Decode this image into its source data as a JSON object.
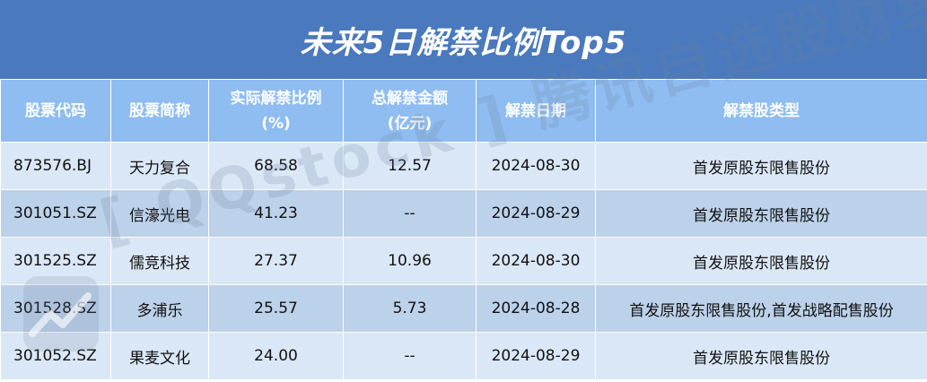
{
  "title": "未来5日解禁比例Top5",
  "headers": [
    [
      "股票代码"
    ],
    [
      "股票简称"
    ],
    [
      "实际解禁比例",
      "(%)"
    ],
    [
      "总解禁金额",
      "(亿元)"
    ],
    [
      "解禁日期"
    ],
    [
      "解禁股类型"
    ]
  ],
  "rows": [
    [
      "873576.BJ",
      "天力复合",
      "68.58",
      "12.57",
      "2024-08-30",
      "首发原股东限售股份"
    ],
    [
      "301051.SZ",
      "信濠光电",
      "41.23",
      "--",
      "2024-08-29",
      "首发原股东限售股份"
    ],
    [
      "301525.SZ",
      "儒竞科技",
      "27.37",
      "10.96",
      "2024-08-30",
      "首发原股东限售股份"
    ],
    [
      "301528.SZ",
      "多浦乐",
      "25.57",
      "5.73",
      "2024-08-28",
      "首发原股东限售股份,首发战略配售股份"
    ],
    [
      "301052.SZ",
      "果麦文化",
      "24.00",
      "--",
      "2024-08-29",
      "首发原股东限售股份"
    ]
  ],
  "watermark": "[ QQstock ] 腾讯自选股财经",
  "colors": {
    "title_bg": "#4a79bd",
    "header_bg": "#8fbdf1",
    "row_light": "#dae7f6",
    "row_dark": "#bcd1ea"
  }
}
